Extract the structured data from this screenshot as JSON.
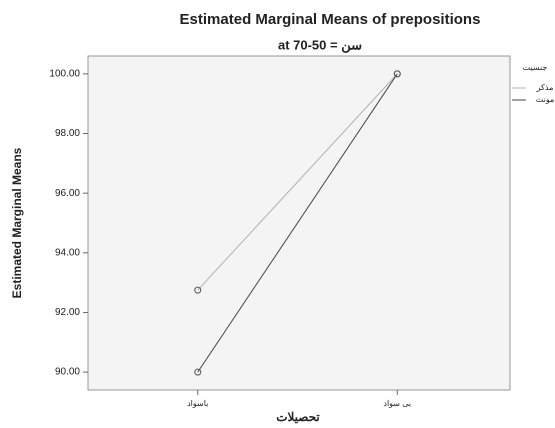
{
  "chart_data": {
    "type": "line",
    "title": "Estimated Marginal Means of prepositions",
    "subtitle": "at 70-50 = سن",
    "y_label": "Estimated Marginal Means",
    "x_label": "تحصیلات",
    "legend_title": "جنسیت",
    "categories": [
      "باسواد",
      "بی سواد"
    ],
    "series": [
      {
        "name": "مذکر",
        "color": "#b0b0b0",
        "values": [
          92.75,
          100
        ]
      },
      {
        "name": "مونث",
        "color": "#444444",
        "values": [
          90,
          100
        ]
      }
    ],
    "ylim": [
      89.4,
      100.6
    ],
    "yticks": [
      {
        "value": 90,
        "label": "90.00"
      },
      {
        "value": 92,
        "label": "92.00"
      },
      {
        "value": 94,
        "label": "94.00"
      },
      {
        "value": 96,
        "label": "96.00"
      },
      {
        "value": 98,
        "label": "98.00"
      },
      {
        "value": 100,
        "label": "100.00"
      }
    ],
    "legend": "right"
  }
}
